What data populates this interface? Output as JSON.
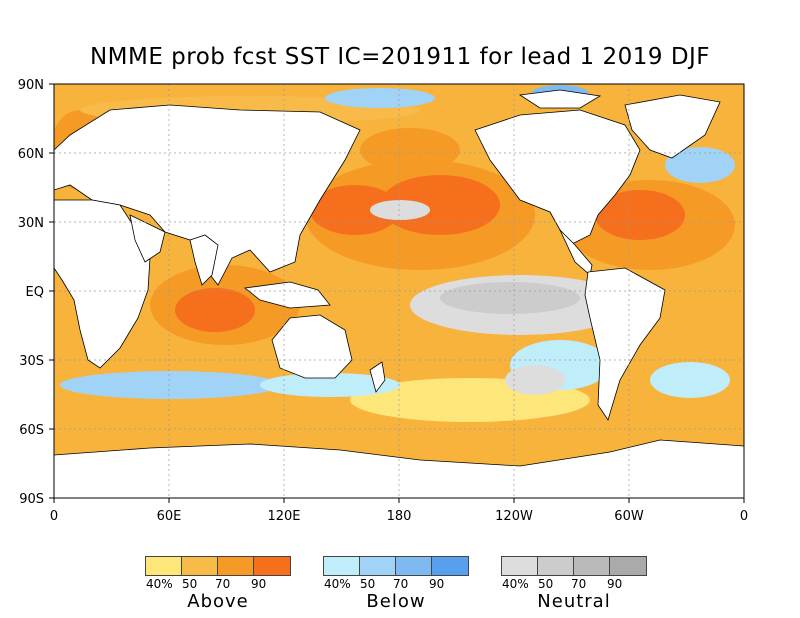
{
  "title": "NMME prob fcst SST IC=201911 for lead 1 2019 DJF",
  "axes": {
    "lat_labels": [
      "90N",
      "60N",
      "30N",
      "EQ",
      "30S",
      "60S",
      "90S"
    ],
    "lon_labels": [
      "0",
      "60E",
      "120E",
      "180",
      "120W",
      "60W",
      "0"
    ]
  },
  "colors": {
    "land": "#ffffff",
    "ocean_base": "#f7b33c",
    "above": [
      "#fde77a",
      "#f8bb4a",
      "#f59a25",
      "#f56f1d"
    ],
    "below": [
      "#bfeefa",
      "#a0d3f5",
      "#7fb9f2",
      "#58a0ee"
    ],
    "neutral": [
      "#dddddd",
      "#cccccc",
      "#bababa",
      "#aaaaaa"
    ]
  },
  "legend": [
    {
      "name": "above",
      "label": "Above",
      "ticks": [
        "40%",
        "50",
        "70",
        "90"
      ]
    },
    {
      "name": "below",
      "label": "Below",
      "ticks": [
        "40%",
        "50",
        "70",
        "90"
      ]
    },
    {
      "name": "neutral",
      "label": "Neutral",
      "ticks": [
        "40%",
        "50",
        "70",
        "90"
      ]
    }
  ]
}
